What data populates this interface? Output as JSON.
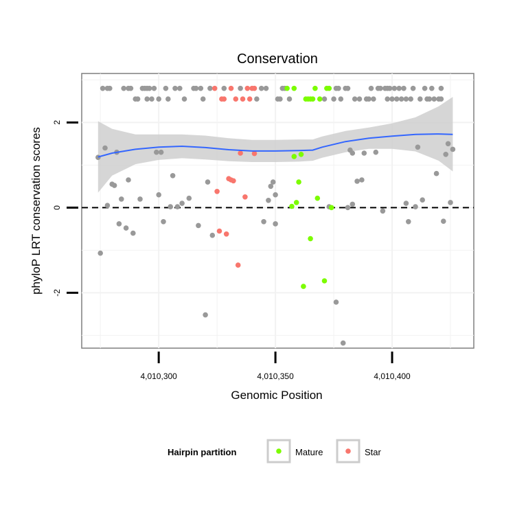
{
  "chart_data": {
    "type": "scatter",
    "title": "Conservation",
    "xlabel": "Genomic Position",
    "ylabel": "phyloP LRT conservation scores",
    "xlim": [
      4010267,
      4010435
    ],
    "ylim": [
      -3.3,
      3.15
    ],
    "xticks": [
      {
        "value": 4010300,
        "label": "4,010,300"
      },
      {
        "value": 4010350,
        "label": "4,010,350"
      },
      {
        "value": 4010400,
        "label": "4,010,400"
      }
    ],
    "yticks": [
      {
        "value": -2,
        "label": "-2"
      },
      {
        "value": 0,
        "label": "0"
      },
      {
        "value": 2,
        "label": "2"
      }
    ],
    "grid": true,
    "reference_line": {
      "y": 0,
      "style": "dashed",
      "color": "#000000"
    },
    "legend": {
      "title": "Hairpin partition",
      "position": "bottom",
      "entries": [
        {
          "label": "Mature",
          "color": "#7cfc00"
        },
        {
          "label": "Star",
          "color": "#f8766d"
        }
      ]
    },
    "colors": {
      "other": "#999999",
      "Mature": "#7cfc00",
      "Star": "#f8766d",
      "smooth": "#3366ff",
      "ribbon": "#cccccc"
    },
    "series": [
      {
        "name": "Other",
        "color": "#999999",
        "points": [
          [
            4010274,
            1.18
          ],
          [
            4010275,
            -1.07
          ],
          [
            4010276,
            2.8
          ],
          [
            4010277,
            1.4
          ],
          [
            4010278,
            2.8
          ],
          [
            4010278,
            0.05
          ],
          [
            4010279,
            2.8
          ],
          [
            4010280,
            0.55
          ],
          [
            4010281,
            0.52
          ],
          [
            4010282,
            1.3
          ],
          [
            4010283,
            -0.38
          ],
          [
            4010284,
            0.2
          ],
          [
            4010285,
            2.8
          ],
          [
            4010286,
            -0.48
          ],
          [
            4010287,
            2.8
          ],
          [
            4010287,
            0.65
          ],
          [
            4010288,
            2.8
          ],
          [
            4010289,
            -0.6
          ],
          [
            4010290,
            2.55
          ],
          [
            4010291,
            2.55
          ],
          [
            4010292,
            0.2
          ],
          [
            4010293,
            2.8
          ],
          [
            4010294,
            2.8
          ],
          [
            4010295,
            2.55
          ],
          [
            4010295,
            2.8
          ],
          [
            4010296,
            2.8
          ],
          [
            4010297,
            2.55
          ],
          [
            4010298,
            2.8
          ],
          [
            4010299,
            1.3
          ],
          [
            4010300,
            0.3
          ],
          [
            4010300,
            2.55
          ],
          [
            4010301,
            1.3
          ],
          [
            4010302,
            -0.33
          ],
          [
            4010303,
            2.8
          ],
          [
            4010304,
            2.55
          ],
          [
            4010305,
            0.02
          ],
          [
            4010306,
            0.75
          ],
          [
            4010307,
            2.8
          ],
          [
            4010308,
            0.02
          ],
          [
            4010309,
            2.8
          ],
          [
            4010310,
            0.1
          ],
          [
            4010311,
            2.55
          ],
          [
            4010313,
            0.22
          ],
          [
            4010315,
            2.8
          ],
          [
            4010316,
            2.8
          ],
          [
            4010317,
            -0.42
          ],
          [
            4010318,
            2.8
          ],
          [
            4010319,
            2.55
          ],
          [
            4010320,
            -2.52
          ],
          [
            4010321,
            0.6
          ],
          [
            4010322,
            2.8
          ],
          [
            4010323,
            -0.65
          ],
          [
            4010328,
            2.8
          ],
          [
            4010335,
            2.8
          ],
          [
            4010342,
            2.55
          ],
          [
            4010344,
            2.8
          ],
          [
            4010345,
            -0.33
          ],
          [
            4010346,
            2.8
          ],
          [
            4010347,
            0.17
          ],
          [
            4010348,
            0.5
          ],
          [
            4010349,
            0.6
          ],
          [
            4010350,
            -0.38
          ],
          [
            4010350,
            0.3
          ],
          [
            4010351,
            2.55
          ],
          [
            4010352,
            2.55
          ],
          [
            4010353,
            2.8
          ],
          [
            4010354,
            2.8
          ],
          [
            4010356,
            2.55
          ],
          [
            4010371,
            2.55
          ],
          [
            4010373,
            0.02
          ],
          [
            4010375,
            2.55
          ],
          [
            4010376,
            2.8
          ],
          [
            4010376,
            -2.22
          ],
          [
            4010377,
            2.8
          ],
          [
            4010378,
            2.55
          ],
          [
            4010379,
            -3.18
          ],
          [
            4010380,
            2.8
          ],
          [
            4010381,
            2.8
          ],
          [
            4010381,
            0.0
          ],
          [
            4010382,
            1.35
          ],
          [
            4010383,
            1.28
          ],
          [
            4010383,
            0.08
          ],
          [
            4010384,
            2.55
          ],
          [
            4010385,
            0.62
          ],
          [
            4010386,
            2.55
          ],
          [
            4010387,
            0.65
          ],
          [
            4010388,
            1.28
          ],
          [
            4010389,
            2.55
          ],
          [
            4010390,
            2.55
          ],
          [
            4010391,
            2.8
          ],
          [
            4010392,
            2.55
          ],
          [
            4010393,
            1.3
          ],
          [
            4010394,
            2.8
          ],
          [
            4010395,
            2.8
          ],
          [
            4010396,
            -0.08
          ],
          [
            4010397,
            2.8
          ],
          [
            4010398,
            2.55
          ],
          [
            4010398,
            2.8
          ],
          [
            4010399,
            2.8
          ],
          [
            4010400,
            2.55
          ],
          [
            4010401,
            2.8
          ],
          [
            4010402,
            2.55
          ],
          [
            4010403,
            2.8
          ],
          [
            4010404,
            2.55
          ],
          [
            4010405,
            2.8
          ],
          [
            4010406,
            2.55
          ],
          [
            4010406,
            0.1
          ],
          [
            4010407,
            -0.33
          ],
          [
            4010408,
            2.55
          ],
          [
            4010409,
            2.8
          ],
          [
            4010410,
            0.02
          ],
          [
            4010411,
            1.42
          ],
          [
            4010412,
            2.55
          ],
          [
            4010413,
            0.18
          ],
          [
            4010414,
            2.8
          ],
          [
            4010415,
            2.55
          ],
          [
            4010416,
            2.55
          ],
          [
            4010417,
            2.8
          ],
          [
            4010418,
            2.55
          ],
          [
            4010419,
            0.8
          ],
          [
            4010420,
            2.55
          ],
          [
            4010421,
            2.8
          ],
          [
            4010421,
            2.55
          ],
          [
            4010422,
            -0.32
          ],
          [
            4010423,
            1.25
          ],
          [
            4010424,
            1.5
          ],
          [
            4010425,
            0.12
          ],
          [
            4010426,
            1.37
          ]
        ]
      },
      {
        "name": "Mature",
        "color": "#7cfc00",
        "points": [
          [
            4010355,
            2.8
          ],
          [
            4010357,
            0.03
          ],
          [
            4010358,
            1.2
          ],
          [
            4010358,
            2.8
          ],
          [
            4010359,
            0.12
          ],
          [
            4010360,
            0.6
          ],
          [
            4010361,
            1.25
          ],
          [
            4010362,
            -1.85
          ],
          [
            4010363,
            2.55
          ],
          [
            4010364,
            2.55
          ],
          [
            4010365,
            -0.73
          ],
          [
            4010365,
            2.55
          ],
          [
            4010366,
            2.55
          ],
          [
            4010367,
            2.8
          ],
          [
            4010368,
            0.22
          ],
          [
            4010369,
            2.55
          ],
          [
            4010371,
            -1.72
          ],
          [
            4010372,
            2.8
          ],
          [
            4010373,
            2.8
          ],
          [
            4010374,
            0.0
          ]
        ]
      },
      {
        "name": "Star",
        "color": "#f8766d",
        "points": [
          [
            4010324,
            2.8
          ],
          [
            4010325,
            0.38
          ],
          [
            4010326,
            -0.55
          ],
          [
            4010327,
            2.55
          ],
          [
            4010328,
            2.55
          ],
          [
            4010329,
            -0.62
          ],
          [
            4010330,
            0.68
          ],
          [
            4010331,
            2.8
          ],
          [
            4010331,
            0.65
          ],
          [
            4010332,
            0.63
          ],
          [
            4010333,
            2.55
          ],
          [
            4010334,
            -1.35
          ],
          [
            4010335,
            1.28
          ],
          [
            4010336,
            2.55
          ],
          [
            4010337,
            0.25
          ],
          [
            4010338,
            2.8
          ],
          [
            4010339,
            2.55
          ],
          [
            4010340,
            2.8
          ],
          [
            4010341,
            1.27
          ],
          [
            4010341,
            2.8
          ]
        ]
      }
    ],
    "smooth": {
      "x": [
        4010274,
        4010280,
        4010290,
        4010300,
        4010310,
        4010320,
        4010330,
        4010340,
        4010350,
        4010360,
        4010366,
        4010370,
        4010380,
        4010390,
        4010400,
        4010410,
        4010420,
        4010426
      ],
      "y": [
        1.19,
        1.28,
        1.37,
        1.42,
        1.44,
        1.41,
        1.36,
        1.33,
        1.33,
        1.34,
        1.35,
        1.42,
        1.55,
        1.63,
        1.68,
        1.72,
        1.73,
        1.72
      ],
      "lower": [
        0.35,
        0.75,
        1.02,
        1.12,
        1.16,
        1.13,
        1.09,
        1.07,
        1.07,
        1.08,
        1.1,
        1.17,
        1.3,
        1.38,
        1.38,
        1.32,
        1.1,
        0.85
      ],
      "upper": [
        2.03,
        1.85,
        1.72,
        1.72,
        1.72,
        1.69,
        1.63,
        1.59,
        1.59,
        1.6,
        1.6,
        1.67,
        1.8,
        1.88,
        1.98,
        2.12,
        2.38,
        2.6
      ]
    }
  }
}
